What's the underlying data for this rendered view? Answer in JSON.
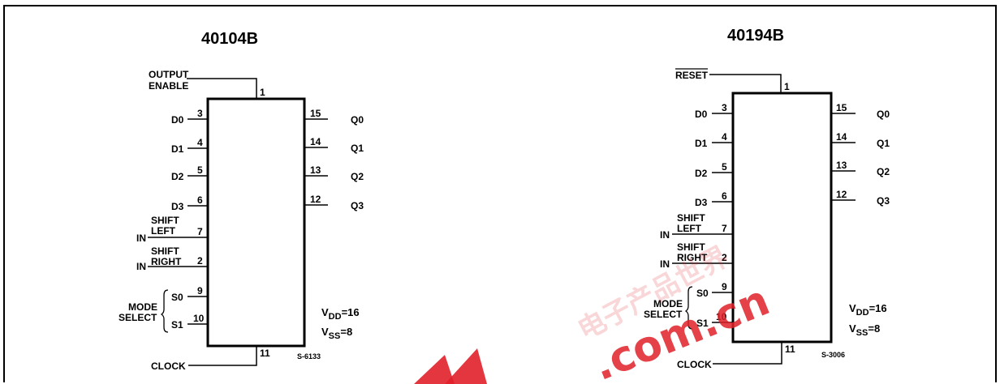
{
  "chips": [
    {
      "title": "40104B",
      "pins": {
        "output_enable": {
          "label_1": "OUTPUT",
          "label_2": "ENABLE",
          "num": "1"
        },
        "d0": {
          "label": "D0",
          "num": "3"
        },
        "d1": {
          "label": "D1",
          "num": "4"
        },
        "d2": {
          "label": "D2",
          "num": "5"
        },
        "d3": {
          "label": "D3",
          "num": "6"
        },
        "shift_left": {
          "label_1": "SHIFT",
          "label_2": "LEFT",
          "in": "IN",
          "num": "7"
        },
        "shift_right": {
          "label_1": "SHIFT",
          "label_2": "RIGHT",
          "in": "IN",
          "num": "2"
        },
        "s0": {
          "label": "S0",
          "num": "9"
        },
        "s1": {
          "label": "S1",
          "num": "10"
        },
        "mode_1": "MODE",
        "mode_2": "SELECT",
        "clock": {
          "label": "CLOCK",
          "num": "11"
        },
        "q0": {
          "label": "Q0",
          "num": "15"
        },
        "q1": {
          "label": "Q1",
          "num": "14"
        },
        "q2": {
          "label": "Q2",
          "num": "13"
        },
        "q3": {
          "label": "Q3",
          "num": "12"
        }
      },
      "vdd": {
        "v": "V",
        "sub": "DD",
        "val": "=16"
      },
      "vss": {
        "v": "V",
        "sub": "SS",
        "val": "=8"
      },
      "code": "S-6133"
    },
    {
      "title": "40194B",
      "pins": {
        "reset": {
          "label": "RESET",
          "num": "1"
        },
        "d0": {
          "label": "D0",
          "num": "3"
        },
        "d1": {
          "label": "D1",
          "num": "4"
        },
        "d2": {
          "label": "D2",
          "num": "5"
        },
        "d3": {
          "label": "D3",
          "num": "6"
        },
        "shift_left": {
          "label_1": "SHIFT",
          "label_2": "LEFT",
          "in": "IN",
          "num": "7"
        },
        "shift_right": {
          "label_1": "SHIFT",
          "label_2": "RIGHT",
          "in": "IN",
          "num": "2"
        },
        "s0": {
          "label": "S0",
          "num": "9"
        },
        "s1": {
          "label": "S1",
          "num": "10"
        },
        "mode_1": "MODE",
        "mode_2": "SELECT",
        "clock": {
          "label": "CLOCK",
          "num": "11"
        },
        "q0": {
          "label": "Q0",
          "num": "15"
        },
        "q1": {
          "label": "Q1",
          "num": "14"
        },
        "q2": {
          "label": "Q2",
          "num": "13"
        },
        "q3": {
          "label": "Q3",
          "num": "12"
        }
      },
      "vdd": {
        "v": "V",
        "sub": "DD",
        "val": "=16"
      },
      "vss": {
        "v": "V",
        "sub": "SS",
        "val": "=8"
      },
      "code": "S-3006"
    }
  ],
  "watermark": {
    "cn": "电子产品世界",
    "url": ".com.cn",
    "color": "#e0202a"
  }
}
